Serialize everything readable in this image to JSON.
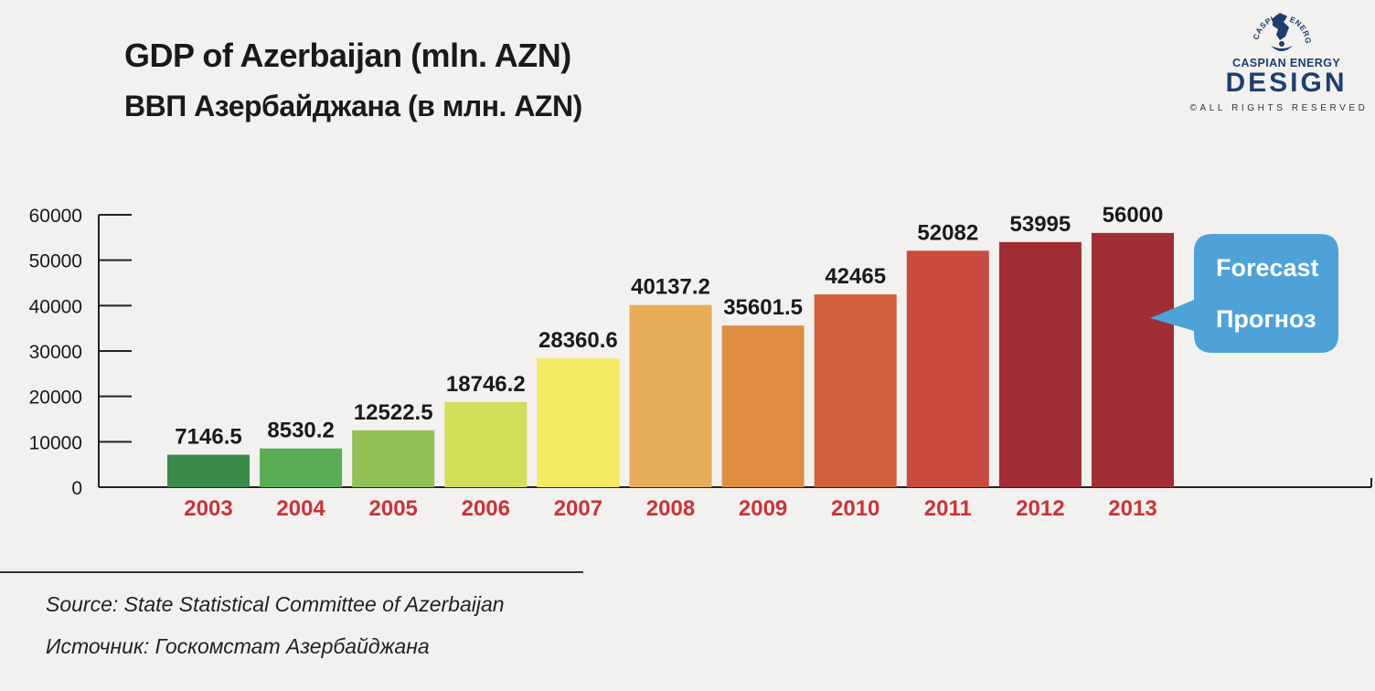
{
  "header": {
    "title_en": "GDP of Azerbaijan (mln. AZN)",
    "title_ru": "ВВП Азербайджана (в млн. AZN)"
  },
  "logo": {
    "arc_text": "CASPIAN ENERGY",
    "line1": "CASPIAN ENERGY",
    "line2": "DESIGN",
    "line3": "©ALL RIGHTS RESERVED"
  },
  "chart_data": {
    "type": "bar",
    "title": "GDP of Azerbaijan (mln. AZN)",
    "categories": [
      "2003",
      "2004",
      "2005",
      "2006",
      "2007",
      "2008",
      "2009",
      "2010",
      "2011",
      "2012",
      "2013"
    ],
    "values": [
      7146.5,
      8530.2,
      12522.5,
      18746.2,
      28360.6,
      40137.2,
      35601.5,
      42465,
      52082,
      53995,
      56000
    ],
    "value_labels": [
      "7146.5",
      "8530.2",
      "12522.5",
      "18746.2",
      "28360.6",
      "40137.2",
      "35601.5",
      "42465",
      "52082",
      "53995",
      "56000"
    ],
    "colors": [
      "#3a8a4a",
      "#5aac55",
      "#93c057",
      "#d4dd5a",
      "#f3e963",
      "#e8ad5a",
      "#df8e40",
      "#d15f3b",
      "#cb4a3f",
      "#a12d35",
      "#a12d35"
    ],
    "y_ticks": [
      0,
      10000,
      20000,
      30000,
      40000,
      50000,
      60000
    ],
    "ylim": [
      0,
      60000
    ],
    "xlabel": "",
    "ylabel": "",
    "grid": false,
    "annotation": {
      "line1": "Forecast",
      "line2": "Прогноз",
      "target_category": "2013",
      "color": "#4ea2d8"
    }
  },
  "footer": {
    "source_en": "Source: State Statistical Committee of Azerbaijan",
    "source_ru": "Источник: Госкомстат Азербайджана"
  }
}
